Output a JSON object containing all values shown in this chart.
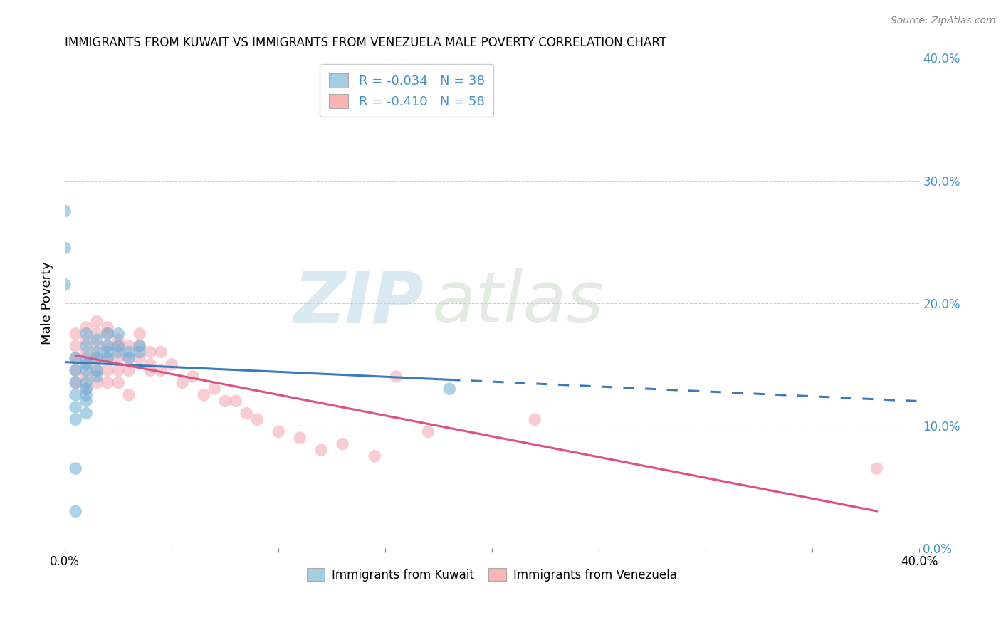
{
  "title": "IMMIGRANTS FROM KUWAIT VS IMMIGRANTS FROM VENEZUELA MALE POVERTY CORRELATION CHART",
  "source": "Source: ZipAtlas.com",
  "ylabel": "Male Poverty",
  "xlim": [
    0.0,
    0.4
  ],
  "ylim": [
    0.0,
    0.4
  ],
  "y_ticks_right": [
    0.0,
    0.1,
    0.2,
    0.3,
    0.4
  ],
  "y_tick_labels_right": [
    "0.0%",
    "10.0%",
    "20.0%",
    "30.0%",
    "40.0%"
  ],
  "kuwait_R": -0.034,
  "kuwait_N": 38,
  "venezuela_R": -0.41,
  "venezuela_N": 58,
  "kuwait_color": "#6baed6",
  "venezuela_color": "#f4a3b0",
  "kuwait_legend_color": "#a6cee3",
  "venezuela_legend_color": "#fbb4b4",
  "trendline_color_kuwait": "#3a7bbf",
  "trendline_color_venezuela": "#e05080",
  "watermark_zip_color": "#b8d4e8",
  "watermark_atlas_color": "#c8d8c8",
  "kuwait_x": [
    0.005,
    0.005,
    0.005,
    0.005,
    0.005,
    0.005,
    0.005,
    0.005,
    0.01,
    0.01,
    0.01,
    0.01,
    0.01,
    0.01,
    0.01,
    0.01,
    0.01,
    0.01,
    0.015,
    0.015,
    0.015,
    0.015,
    0.015,
    0.02,
    0.02,
    0.02,
    0.02,
    0.025,
    0.025,
    0.025,
    0.03,
    0.03,
    0.035,
    0.035,
    0.18,
    0.0,
    0.0,
    0.0
  ],
  "kuwait_y": [
    0.155,
    0.145,
    0.135,
    0.125,
    0.115,
    0.105,
    0.065,
    0.03,
    0.175,
    0.165,
    0.155,
    0.15,
    0.145,
    0.135,
    0.13,
    0.125,
    0.12,
    0.11,
    0.17,
    0.16,
    0.155,
    0.145,
    0.14,
    0.175,
    0.165,
    0.16,
    0.155,
    0.175,
    0.165,
    0.16,
    0.16,
    0.155,
    0.165,
    0.16,
    0.13,
    0.275,
    0.245,
    0.215
  ],
  "venezuela_x": [
    0.005,
    0.005,
    0.005,
    0.005,
    0.005,
    0.01,
    0.01,
    0.01,
    0.01,
    0.01,
    0.01,
    0.015,
    0.015,
    0.015,
    0.015,
    0.015,
    0.015,
    0.02,
    0.02,
    0.02,
    0.02,
    0.02,
    0.02,
    0.025,
    0.025,
    0.025,
    0.025,
    0.025,
    0.03,
    0.03,
    0.03,
    0.03,
    0.035,
    0.035,
    0.035,
    0.04,
    0.04,
    0.04,
    0.045,
    0.045,
    0.05,
    0.055,
    0.06,
    0.065,
    0.07,
    0.075,
    0.08,
    0.085,
    0.09,
    0.1,
    0.11,
    0.12,
    0.13,
    0.145,
    0.155,
    0.17,
    0.22,
    0.38
  ],
  "venezuela_y": [
    0.175,
    0.165,
    0.155,
    0.145,
    0.135,
    0.18,
    0.17,
    0.16,
    0.15,
    0.14,
    0.13,
    0.185,
    0.175,
    0.165,
    0.155,
    0.145,
    0.135,
    0.18,
    0.175,
    0.165,
    0.155,
    0.145,
    0.135,
    0.17,
    0.165,
    0.155,
    0.145,
    0.135,
    0.165,
    0.155,
    0.145,
    0.125,
    0.175,
    0.165,
    0.155,
    0.16,
    0.15,
    0.145,
    0.16,
    0.145,
    0.15,
    0.135,
    0.14,
    0.125,
    0.13,
    0.12,
    0.12,
    0.11,
    0.105,
    0.095,
    0.09,
    0.08,
    0.085,
    0.075,
    0.14,
    0.095,
    0.105,
    0.065
  ]
}
